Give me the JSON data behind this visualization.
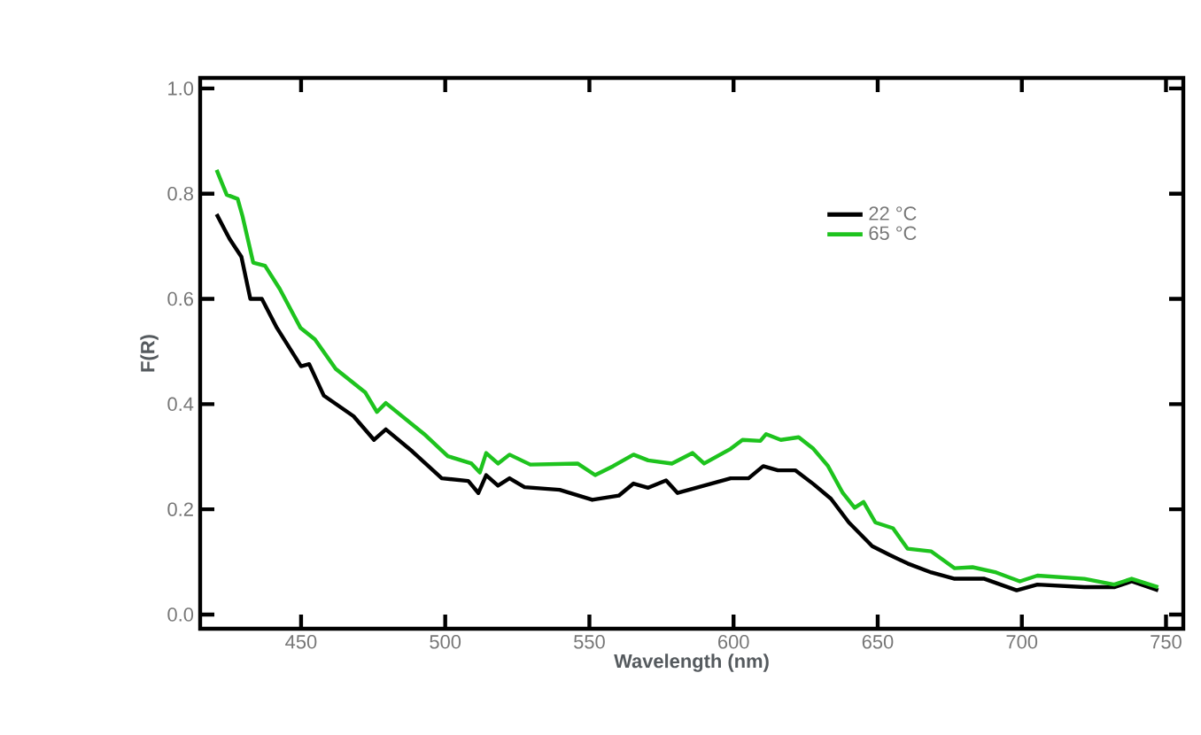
{
  "chart_data": {
    "type": "line",
    "xlabel": "Wavelength (nm)",
    "ylabel": "F(R)",
    "xlim": [
      415,
      756
    ],
    "ylim": [
      -0.027,
      1.02
    ],
    "xticks": [
      450,
      500,
      550,
      600,
      650,
      700,
      750
    ],
    "yticks": [
      {
        "value": 0,
        "label": "0.0"
      },
      {
        "value": 0.2,
        "label": "0.2"
      },
      {
        "value": 0.4,
        "label": "0.4"
      },
      {
        "value": 0.6,
        "label": "0.6"
      },
      {
        "value": 0.8,
        "label": "0.8"
      },
      {
        "value": 1.0,
        "label": "1.0"
      }
    ],
    "legend": "top right",
    "grid": false,
    "marker": "none",
    "line_style": "solid",
    "series": [
      {
        "name": "22 °C",
        "color": "#000000",
        "x": [
          420.7,
          425.2,
          429.3,
          432.4,
          436.4,
          441.6,
          450,
          452.8,
          457.9,
          468.2,
          475.3,
          479.4,
          488.6,
          498.8,
          508,
          511.5,
          514.2,
          518.3,
          522.3,
          527.5,
          539.7,
          551,
          560.2,
          565.3,
          570.4,
          576.6,
          580.6,
          589.8,
          599,
          605.2,
          610.3,
          615.4,
          621.5,
          627.7,
          633.8,
          640,
          648.1,
          654.2,
          660.4,
          668.6,
          676.7,
          687,
          698.2,
          705.4,
          721.7,
          732,
          738.1,
          747.3
        ],
        "values": [
          0.761,
          0.714,
          0.68,
          0.6,
          0.6,
          0.545,
          0.472,
          0.476,
          0.416,
          0.377,
          0.332,
          0.352,
          0.31,
          0.259,
          0.254,
          0.231,
          0.265,
          0.245,
          0.259,
          0.242,
          0.237,
          0.218,
          0.226,
          0.249,
          0.241,
          0.255,
          0.231,
          0.245,
          0.259,
          0.259,
          0.282,
          0.274,
          0.274,
          0.248,
          0.22,
          0.175,
          0.13,
          0.113,
          0.097,
          0.08,
          0.068,
          0.068,
          0.046,
          0.057,
          0.052,
          0.052,
          0.063,
          0.046
        ]
      },
      {
        "name": "65 °C",
        "color": "#1ec31e",
        "x": [
          420.7,
          424.2,
          428,
          429.7,
          433.4,
          437.5,
          442.6,
          449.8,
          454.8,
          462,
          472.3,
          476.3,
          479.4,
          492.7,
          500.9,
          509.1,
          512,
          514.2,
          518.3,
          522.3,
          529.5,
          545.9,
          552,
          558.2,
          565.3,
          570.4,
          578.6,
          585.8,
          589.8,
          599,
          603.1,
          609.3,
          611.3,
          616.4,
          622.6,
          627.7,
          632.8,
          637.9,
          642,
          645.1,
          649.2,
          655.3,
          660.4,
          668.6,
          676.7,
          682.9,
          691.1,
          699.3,
          705.4,
          721.7,
          732,
          738.1,
          747.3
        ],
        "values": [
          0.845,
          0.798,
          0.79,
          0.757,
          0.669,
          0.663,
          0.619,
          0.545,
          0.523,
          0.467,
          0.422,
          0.385,
          0.402,
          0.343,
          0.301,
          0.287,
          0.27,
          0.307,
          0.287,
          0.304,
          0.285,
          0.287,
          0.265,
          0.282,
          0.304,
          0.293,
          0.287,
          0.307,
          0.287,
          0.315,
          0.332,
          0.33,
          0.343,
          0.332,
          0.337,
          0.315,
          0.282,
          0.231,
          0.203,
          0.214,
          0.175,
          0.164,
          0.125,
          0.12,
          0.088,
          0.09,
          0.08,
          0.063,
          0.074,
          0.068,
          0.057,
          0.068,
          0.052
        ]
      }
    ]
  }
}
